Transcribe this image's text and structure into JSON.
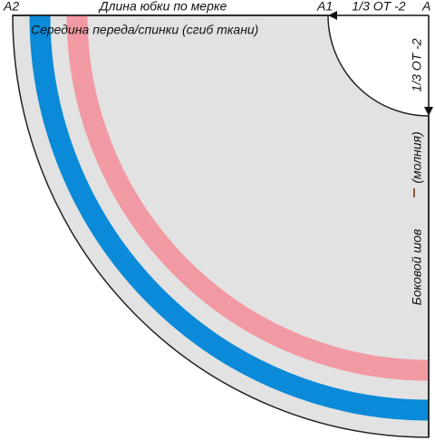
{
  "labels": {
    "a2": "A2",
    "top_length": "Длина юбки по мерке",
    "a1": "A1",
    "top_third": "1/3 ОТ -2",
    "a": "A",
    "fold": "Середина переда/спинки (сгиб ткани)",
    "side_third": "1/3 ОТ -2",
    "zipper": "(молния)",
    "side_seam": "Боковой шов"
  }
}
